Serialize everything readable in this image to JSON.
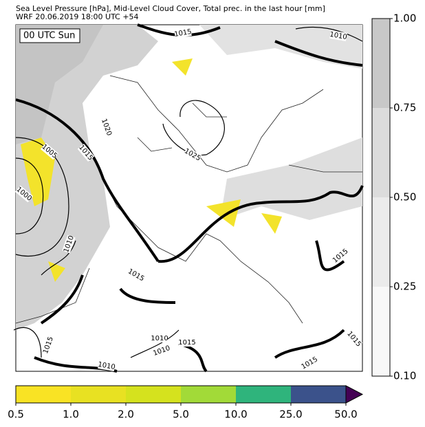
{
  "header": {
    "lines": [
      "Sea Level Pressure [hPa], Mid-Level Cloud Cover, Total prec. in the last hour [mm]",
      "WRF 20.06.2019 18:00 UTC +54"
    ]
  },
  "map": {
    "time_label": "00 UTC Sun",
    "isobar_labels": [
      "1015",
      "1010",
      "1020",
      "1025",
      "1005",
      "1015",
      "1000",
      "1010",
      "1015",
      "1015",
      "1010",
      "1015",
      "1010",
      "1010",
      "1015",
      "1015",
      "1015"
    ]
  },
  "cloud_colorbar": {
    "ticks": [
      "1.00",
      "0.75",
      "0.50",
      "0.25",
      "0.10"
    ],
    "colors": [
      "#c8c8c8",
      "#dcdcdc",
      "#ebebeb",
      "#f8f8f8"
    ]
  },
  "precip_colorbar": {
    "ticks": [
      "0.5",
      "1.0",
      "2.0",
      "5.0",
      "10.0",
      "25.0",
      "50.0"
    ],
    "colors": [
      "#f9e324",
      "#e8e122",
      "#d5e21e",
      "#a2da38",
      "#2fb47c",
      "#3b528b",
      "#440154"
    ]
  }
}
